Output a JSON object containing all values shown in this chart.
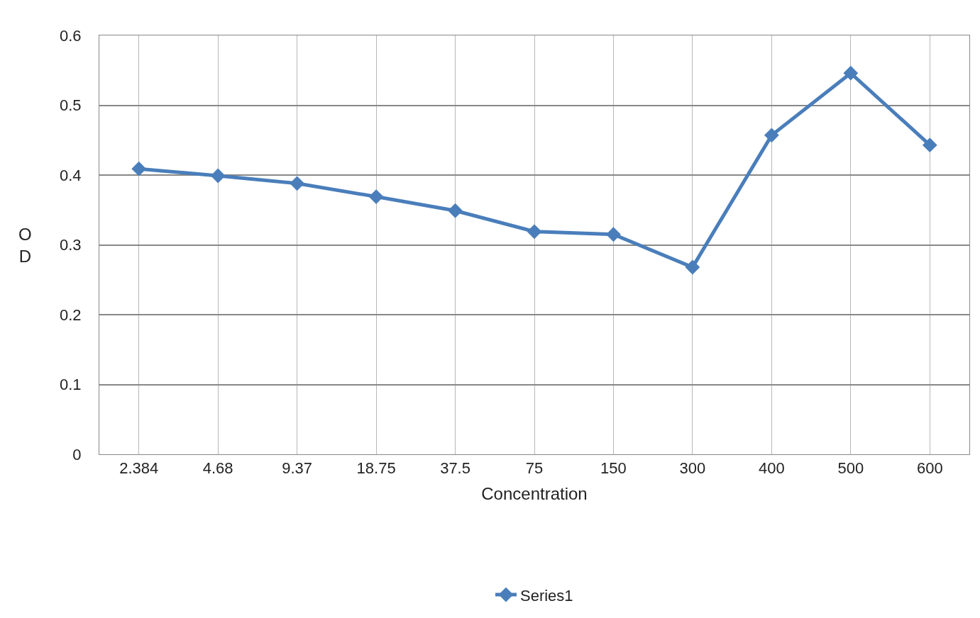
{
  "chart_data": {
    "type": "line",
    "xlabel": "Concentration",
    "ylabel": "O\nD",
    "categories": [
      "2.384",
      "4.68",
      "9.37",
      "18.75",
      "37.5",
      "75",
      "150",
      "300",
      "400",
      "500",
      "600"
    ],
    "series": [
      {
        "name": "Series1",
        "color": "#4a7ebb",
        "values": [
          0.409,
          0.399,
          0.388,
          0.369,
          0.349,
          0.319,
          0.315,
          0.268,
          0.457,
          0.546,
          0.443
        ]
      }
    ],
    "ylim": [
      0,
      0.6
    ],
    "yticks": [
      {
        "value": 0,
        "label": "0"
      },
      0.1,
      0.2,
      0.3,
      0.4,
      0.5,
      0.6
    ],
    "grid": true,
    "legend": "bottom",
    "marker": "diamond",
    "line_style": "solid"
  }
}
